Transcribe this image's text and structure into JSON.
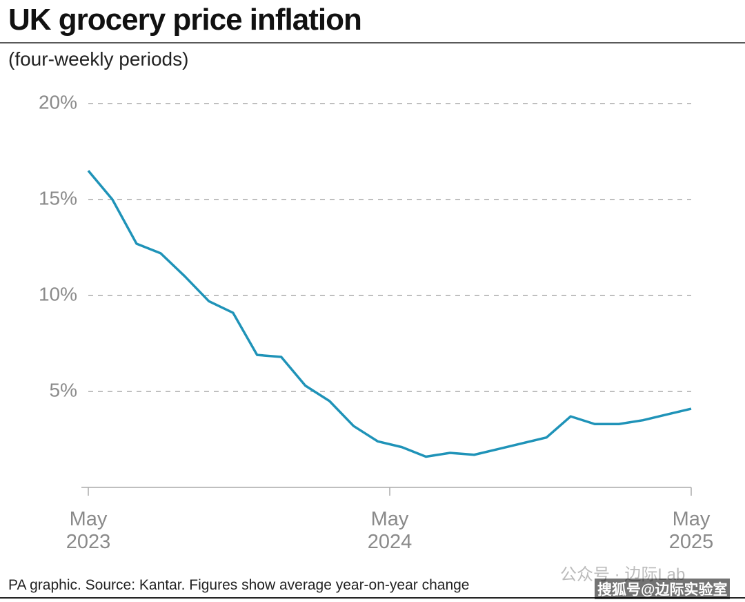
{
  "chart_data": {
    "type": "line",
    "title": "UK grocery price inflation",
    "subtitle": "(four-weekly periods)",
    "source": "PA graphic. Source: Kantar. Figures show average year-on-year change",
    "watermarks": [
      "公众号 · 边际Lab",
      "搜狐号@边际实验室"
    ],
    "x": [
      2023.333,
      2023.413,
      2023.493,
      2023.573,
      2023.653,
      2023.733,
      2023.813,
      2023.893,
      2023.973,
      2024.053,
      2024.133,
      2024.213,
      2024.293,
      2024.373,
      2024.453,
      2024.533,
      2024.613,
      2024.693,
      2024.773,
      2024.853,
      2024.933,
      2025.013,
      2025.093,
      2025.173,
      2025.253,
      2025.333
    ],
    "series": [
      {
        "name": "UK grocery price inflation",
        "color": "#1f93b8",
        "values": [
          16.5,
          15.0,
          12.7,
          12.2,
          11.0,
          9.7,
          9.1,
          6.9,
          6.8,
          5.3,
          4.5,
          3.2,
          2.4,
          2.1,
          1.6,
          1.8,
          1.7,
          2.0,
          2.3,
          2.6,
          3.7,
          3.3,
          3.3,
          3.5,
          3.8,
          4.1
        ]
      }
    ],
    "xlim": [
      2023.333,
      2025.333
    ],
    "xticks": [
      {
        "value": 2023.333,
        "label": "May\n2023"
      },
      {
        "value": 2024.333,
        "label": "May\n2024"
      },
      {
        "value": 2025.333,
        "label": "May\n2025"
      }
    ],
    "ylim": [
      0,
      20
    ],
    "yticks": [
      {
        "value": 5,
        "label": "5%"
      },
      {
        "value": 10,
        "label": "10%"
      },
      {
        "value": 15,
        "label": "15%"
      },
      {
        "value": 20,
        "label": "20%"
      }
    ],
    "grid": true
  }
}
